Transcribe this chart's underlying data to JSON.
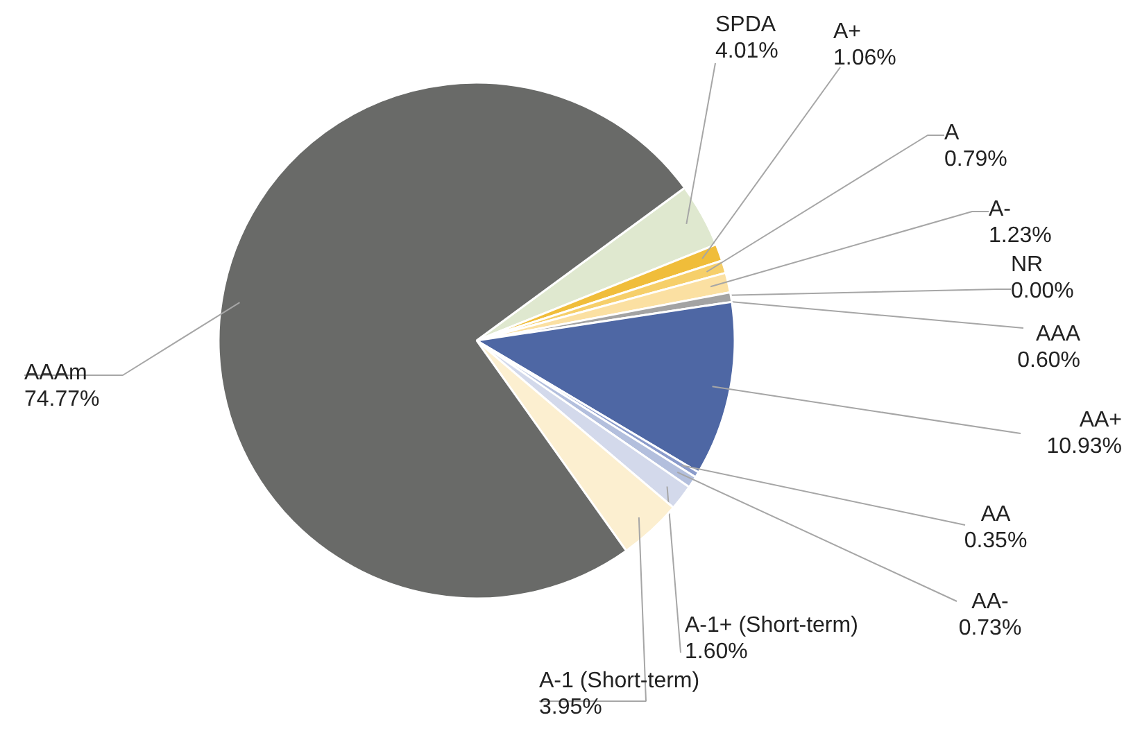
{
  "chart_data": {
    "type": "pie",
    "categories": [
      "SPDA",
      "A+",
      "A",
      "A-",
      "NR",
      "AAA",
      "AA+",
      "AA",
      "AA-",
      "A-1+ (Short-term)",
      "A-1 (Short-term)",
      "AAAm"
    ],
    "values": [
      4.01,
      1.06,
      0.79,
      1.23,
      0.0,
      0.6,
      10.93,
      0.35,
      0.73,
      1.6,
      3.95,
      74.77
    ],
    "colors": [
      "#dfe8cf",
      "#f0bd3a",
      "#f6cf6a",
      "#fbe0a2",
      "#ffffff",
      "#a3a3a3",
      "#4e67a4",
      "#8b9ccb",
      "#b3bfdd",
      "#d3d9eb",
      "#fcefd0",
      "#696a68"
    ],
    "value_labels": [
      "4.01%",
      "1.06%",
      "0.79%",
      "1.23%",
      "0.00%",
      "0.60%",
      "10.93%",
      "0.35%",
      "0.73%",
      "1.60%",
      "3.95%",
      "74.77%"
    ]
  }
}
